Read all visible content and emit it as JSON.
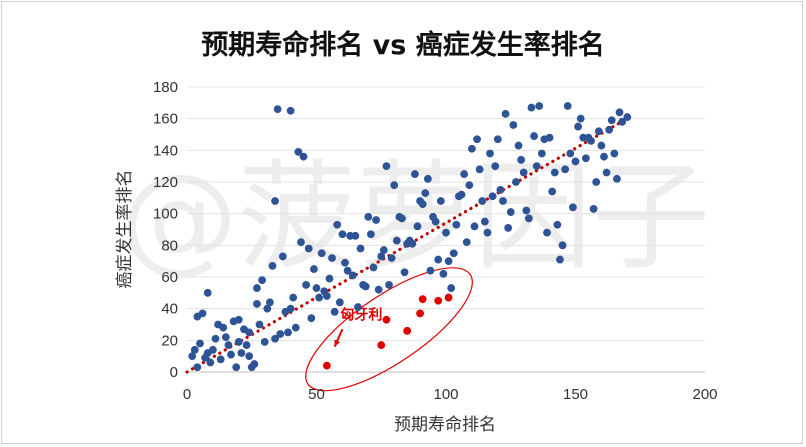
{
  "chart_data": {
    "type": "scatter",
    "title": "预期寿命排名 vs 癌症发生率排名",
    "xlabel": "预期寿命排名",
    "ylabel": "癌症发生率排名",
    "xlim": [
      0,
      200
    ],
    "ylim": [
      0,
      180
    ],
    "xticks": [
      "0",
      "50",
      "100",
      "150",
      "200"
    ],
    "yticks": [
      "0",
      "20",
      "40",
      "60",
      "80",
      "100",
      "120",
      "140",
      "160",
      "180"
    ],
    "watermark": "@菠萝因子",
    "trendline": {
      "x": [
        0,
        172
      ],
      "y": [
        0,
        162
      ],
      "color": "#c00000",
      "style": "dotted"
    },
    "series": [
      {
        "color": "#2e5496",
        "points": [
          [
            2,
            10
          ],
          [
            3,
            14
          ],
          [
            4,
            35
          ],
          [
            4,
            3
          ],
          [
            5,
            18
          ],
          [
            6,
            37
          ],
          [
            7,
            9
          ],
          [
            8,
            50
          ],
          [
            8,
            12
          ],
          [
            9,
            6
          ],
          [
            10,
            14
          ],
          [
            11,
            21
          ],
          [
            12,
            30
          ],
          [
            13,
            8
          ],
          [
            14,
            28
          ],
          [
            15,
            22
          ],
          [
            16,
            17
          ],
          [
            17,
            11
          ],
          [
            18,
            32
          ],
          [
            19,
            3
          ],
          [
            20,
            19
          ],
          [
            20,
            33
          ],
          [
            21,
            12
          ],
          [
            22,
            27
          ],
          [
            23,
            17
          ],
          [
            24,
            10
          ],
          [
            24,
            25
          ],
          [
            25,
            3
          ],
          [
            26,
            5
          ],
          [
            27,
            43
          ],
          [
            27,
            53
          ],
          [
            28,
            30
          ],
          [
            29,
            58
          ],
          [
            30,
            19
          ],
          [
            31,
            40
          ],
          [
            32,
            44
          ],
          [
            33,
            67
          ],
          [
            34,
            21
          ],
          [
            34,
            108
          ],
          [
            35,
            166
          ],
          [
            36,
            24
          ],
          [
            37,
            73
          ],
          [
            38,
            38
          ],
          [
            39,
            25
          ],
          [
            40,
            165
          ],
          [
            40,
            40
          ],
          [
            41,
            47
          ],
          [
            42,
            28
          ],
          [
            43,
            139
          ],
          [
            44,
            82
          ],
          [
            45,
            136
          ],
          [
            46,
            55
          ],
          [
            47,
            78
          ],
          [
            48,
            34
          ],
          [
            49,
            65
          ],
          [
            50,
            53
          ],
          [
            51,
            47
          ],
          [
            52,
            75
          ],
          [
            53,
            51
          ],
          [
            54,
            48
          ],
          [
            55,
            59
          ],
          [
            56,
            72
          ],
          [
            57,
            38
          ],
          [
            58,
            93
          ],
          [
            59,
            44
          ],
          [
            60,
            87
          ],
          [
            61,
            69
          ],
          [
            62,
            64
          ],
          [
            63,
            86
          ],
          [
            64,
            61
          ],
          [
            65,
            86
          ],
          [
            66,
            41
          ],
          [
            67,
            78
          ],
          [
            68,
            55
          ],
          [
            69,
            54
          ],
          [
            70,
            98
          ],
          [
            71,
            87
          ],
          [
            72,
            66
          ],
          [
            73,
            96
          ],
          [
            74,
            52
          ],
          [
            75,
            73
          ],
          [
            76,
            77
          ],
          [
            77,
            130
          ],
          [
            78,
            55
          ],
          [
            79,
            72
          ],
          [
            80,
            118
          ],
          [
            81,
            83
          ],
          [
            82,
            98
          ],
          [
            83,
            97
          ],
          [
            84,
            63
          ],
          [
            85,
            81
          ],
          [
            86,
            83
          ],
          [
            87,
            81
          ],
          [
            88,
            125
          ],
          [
            89,
            92
          ],
          [
            90,
            108
          ],
          [
            91,
            106
          ],
          [
            92,
            113
          ],
          [
            93,
            122
          ],
          [
            94,
            64
          ],
          [
            95,
            98
          ],
          [
            96,
            95
          ],
          [
            97,
            71
          ],
          [
            98,
            108
          ],
          [
            99,
            62
          ],
          [
            100,
            88
          ],
          [
            101,
            70
          ],
          [
            102,
            53
          ],
          [
            103,
            75
          ],
          [
            104,
            93
          ],
          [
            105,
            111
          ],
          [
            106,
            112
          ],
          [
            107,
            125
          ],
          [
            108,
            82
          ],
          [
            109,
            118
          ],
          [
            110,
            141
          ],
          [
            111,
            92
          ],
          [
            112,
            147
          ],
          [
            113,
            128
          ],
          [
            114,
            108
          ],
          [
            115,
            95
          ],
          [
            116,
            88
          ],
          [
            117,
            138
          ],
          [
            118,
            111
          ],
          [
            119,
            130
          ],
          [
            120,
            147
          ],
          [
            121,
            115
          ],
          [
            122,
            108
          ],
          [
            123,
            163
          ],
          [
            124,
            91
          ],
          [
            125,
            101
          ],
          [
            126,
            156
          ],
          [
            127,
            120
          ],
          [
            128,
            143
          ],
          [
            129,
            134
          ],
          [
            130,
            126
          ],
          [
            131,
            102
          ],
          [
            132,
            97
          ],
          [
            133,
            167
          ],
          [
            134,
            149
          ],
          [
            135,
            130
          ],
          [
            136,
            168
          ],
          [
            137,
            138
          ],
          [
            138,
            147
          ],
          [
            139,
            88
          ],
          [
            140,
            148
          ],
          [
            141,
            114
          ],
          [
            142,
            126
          ],
          [
            143,
            93
          ],
          [
            144,
            71
          ],
          [
            145,
            80
          ],
          [
            146,
            128
          ],
          [
            147,
            168
          ],
          [
            148,
            138
          ],
          [
            149,
            104
          ],
          [
            150,
            133
          ],
          [
            151,
            155
          ],
          [
            152,
            160
          ],
          [
            153,
            148
          ],
          [
            154,
            135
          ],
          [
            155,
            148
          ],
          [
            156,
            146
          ],
          [
            157,
            103
          ],
          [
            158,
            120
          ],
          [
            159,
            152
          ],
          [
            160,
            143
          ],
          [
            161,
            136
          ],
          [
            162,
            126
          ],
          [
            163,
            153
          ],
          [
            164,
            159
          ],
          [
            165,
            138
          ],
          [
            166,
            122
          ],
          [
            167,
            164
          ],
          [
            168,
            158
          ],
          [
            170,
            161
          ]
        ]
      },
      {
        "color": "#e00000",
        "points": [
          [
            54,
            4
          ],
          [
            75,
            17
          ],
          [
            77,
            33
          ],
          [
            85,
            26
          ],
          [
            90,
            37
          ],
          [
            91,
            46
          ],
          [
            97,
            45
          ],
          [
            101,
            47
          ]
        ]
      }
    ],
    "annotation": {
      "text": "匈牙利",
      "color": "#e00000",
      "arrow_from": [
        60,
        27
      ],
      "arrow_to": [
        57,
        16
      ],
      "ellipse": {
        "cx": 78,
        "cy": 27,
        "rx": 28,
        "ry": 25,
        "rotation_deg": -34
      }
    }
  }
}
